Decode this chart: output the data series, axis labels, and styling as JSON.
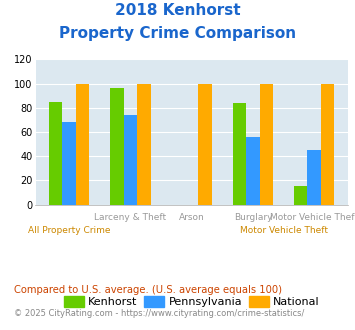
{
  "title_line1": "2018 Kenhorst",
  "title_line2": "Property Crime Comparison",
  "categories": [
    "All Property Crime",
    "Larceny & Theft",
    "Arson",
    "Burglary",
    "Motor Vehicle Theft"
  ],
  "top_labels": [
    "",
    "Larceny & Theft",
    "Arson",
    "Burglary",
    "Motor Vehicle Theft"
  ],
  "bottom_labels": [
    "All Property Crime",
    "",
    "",
    "",
    "Motor Vehicle Theft"
  ],
  "kenhorst": [
    85,
    96,
    0,
    84,
    15
  ],
  "pennsylvania": [
    68,
    74,
    0,
    56,
    45
  ],
  "national": [
    100,
    100,
    100,
    100,
    100
  ],
  "colors": {
    "kenhorst": "#66cc00",
    "pennsylvania": "#3399ff",
    "national": "#ffaa00"
  },
  "ylim": [
    0,
    120
  ],
  "yticks": [
    0,
    20,
    40,
    60,
    80,
    100,
    120
  ],
  "title_color": "#1a66cc",
  "plot_bg": "#dce8f0",
  "top_label_color": "#999999",
  "bottom_label_color": "#cc8800",
  "legend_labels": [
    "Kenhorst",
    "Pennsylvania",
    "National"
  ],
  "footnote1": "Compared to U.S. average. (U.S. average equals 100)",
  "footnote2": "© 2025 CityRating.com - https://www.cityrating.com/crime-statistics/",
  "footnote1_color": "#cc4400",
  "footnote2_color": "#888888"
}
